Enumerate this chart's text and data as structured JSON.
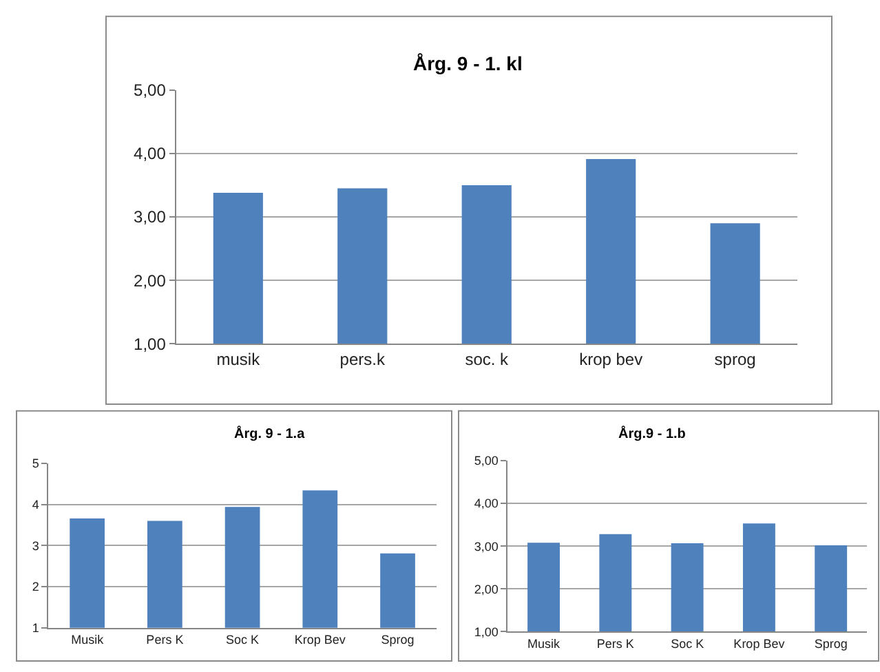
{
  "chart_data": [
    {
      "type": "bar",
      "title": "Årg. 9 - 1. kl",
      "categories": [
        "musik",
        "pers.k",
        "soc. k",
        "krop bev",
        "sprog"
      ],
      "values": [
        3.38,
        3.45,
        3.5,
        3.91,
        2.9
      ],
      "color": "#4f81bd",
      "ylim": [
        1,
        5
      ],
      "yticks": [
        {
          "value": 1,
          "label": "1,00"
        },
        {
          "value": 2,
          "label": "2,00"
        },
        {
          "value": 3,
          "label": "3,00"
        },
        {
          "value": 4,
          "label": "4,00"
        },
        {
          "value": 5,
          "label": "5,00"
        }
      ],
      "grid": "y"
    },
    {
      "type": "bar",
      "title": "Årg. 9 - 1.a",
      "categories": [
        "Musik",
        "Pers K",
        "Soc K",
        "Krop Bev",
        "Sprog"
      ],
      "values": [
        3.66,
        3.6,
        3.94,
        4.34,
        2.81
      ],
      "color": "#4f81bd",
      "ylim": [
        1,
        5
      ],
      "yticks": [
        1,
        2,
        3,
        4,
        5
      ],
      "grid": "y"
    },
    {
      "type": "bar",
      "title": "Årg.9 - 1.b",
      "categories": [
        "Musik",
        "Pers K",
        "Soc K",
        "Krop Bev",
        "Sprog"
      ],
      "values": [
        3.08,
        3.28,
        3.07,
        3.53,
        3.02
      ],
      "color": "#4f81bd",
      "ylim": [
        1,
        5
      ],
      "yticks": [
        {
          "value": 1,
          "label": "1,00"
        },
        {
          "value": 2,
          "label": "2,00"
        },
        {
          "value": 3,
          "label": "3,00"
        },
        {
          "value": 4,
          "label": "4,00"
        },
        {
          "value": 5,
          "label": "5,00"
        }
      ],
      "grid": "y"
    }
  ]
}
